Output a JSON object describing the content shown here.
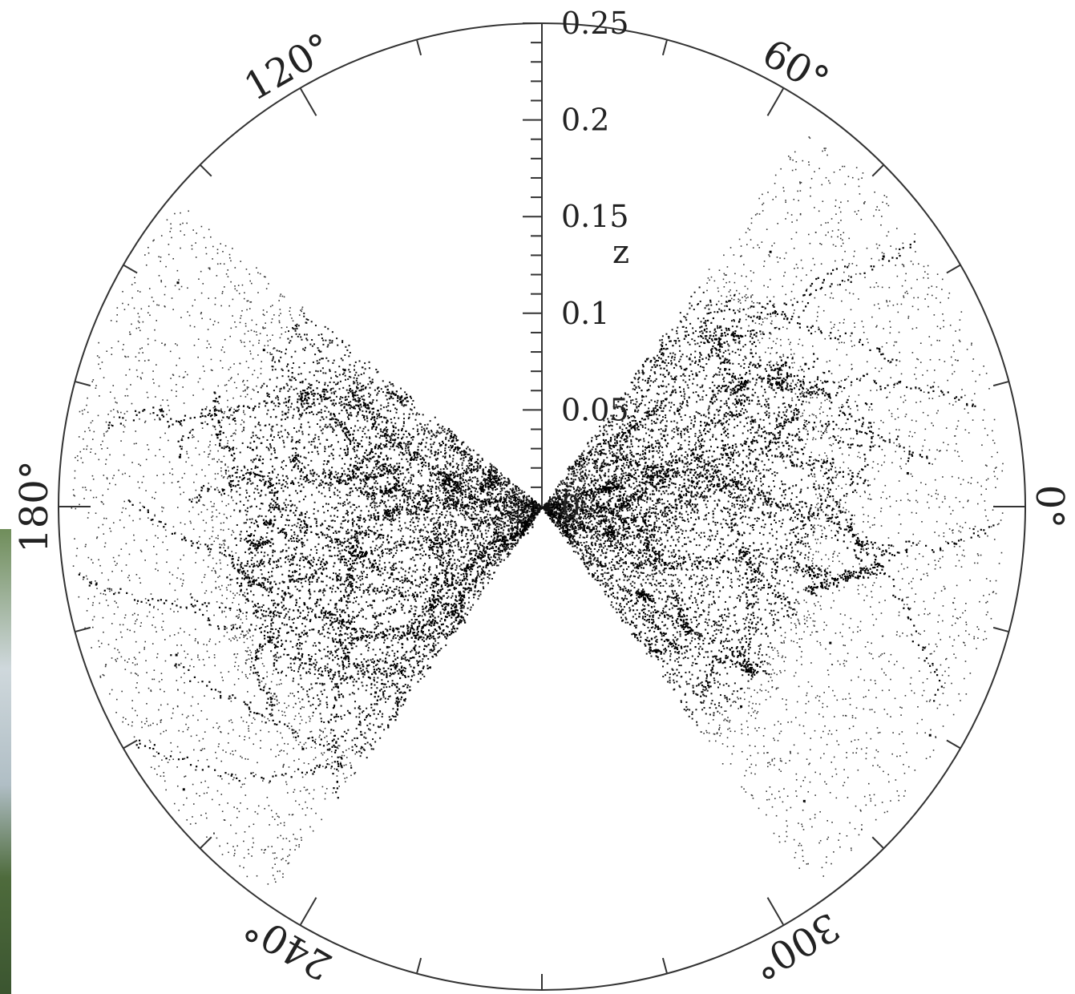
{
  "chart_data": {
    "type": "scatter",
    "coordinate_system": "polar",
    "title": "",
    "radial_axis": {
      "label": "z",
      "range": [
        0,
        0.25
      ],
      "ticks": [
        "0",
        "0.05",
        "0.1",
        "0.15",
        "0.2",
        "0.25"
      ],
      "tick_values": [
        0,
        0.05,
        0.1,
        0.15,
        0.2,
        0.25
      ],
      "minor_step": 0.01
    },
    "angular_axis": {
      "unit": "degrees",
      "direction": "counterclockwise",
      "zero_at": "right",
      "labels": [
        "0°",
        "60°",
        "120°",
        "180°",
        "240°",
        "300°"
      ],
      "label_values": [
        0,
        60,
        120,
        180,
        240,
        300
      ],
      "major_step": 60,
      "minor_step": 15
    },
    "series": [
      {
        "wedge_deg": [
          140,
          235
        ],
        "z_range": [
          0.0,
          0.245
        ],
        "dense_to_z": 0.16,
        "points": [
          [
            180.1,
            0.012
          ],
          [
            178.2,
            0.018
          ],
          [
            183.4,
            0.024
          ],
          [
            175.1,
            0.031
          ],
          [
            190.2,
            0.036
          ],
          [
            170.5,
            0.042
          ],
          [
            196.3,
            0.048
          ],
          [
            165.2,
            0.053
          ],
          [
            200.4,
            0.061
          ],
          [
            185.1,
            0.065
          ],
          [
            160.3,
            0.072
          ],
          [
            210.2,
            0.078
          ],
          [
            175.4,
            0.082
          ],
          [
            155.2,
            0.088
          ],
          [
            215.1,
            0.093
          ],
          [
            190.6,
            0.097
          ],
          [
            150.4,
            0.103
          ],
          [
            222.3,
            0.108
          ],
          [
            168.1,
            0.113
          ],
          [
            205.4,
            0.118
          ],
          [
            145.3,
            0.124
          ],
          [
            228.2,
            0.129
          ],
          [
            180.5,
            0.134
          ],
          [
            160.1,
            0.141
          ],
          [
            212.3,
            0.148
          ],
          [
            195.2,
            0.156
          ],
          [
            150.6,
            0.165
          ],
          [
            225.4,
            0.176
          ],
          [
            172.2,
            0.189
          ],
          [
            202.1,
            0.204
          ],
          [
            148.4,
            0.221
          ],
          [
            218.3,
            0.236
          ]
        ]
      },
      {
        "wedge_deg": [
          -55,
          55
        ],
        "z_range": [
          0.0,
          0.24
        ],
        "dense_to_z": 0.14,
        "points": [
          [
            0.5,
            0.014
          ],
          [
            -4.2,
            0.021
          ],
          [
            8.1,
            0.027
          ],
          [
            -12.3,
            0.034
          ],
          [
            15.2,
            0.041
          ],
          [
            -20.1,
            0.047
          ],
          [
            24.3,
            0.054
          ],
          [
            3.2,
            0.06
          ],
          [
            -28.4,
            0.067
          ],
          [
            30.1,
            0.073
          ],
          [
            -8.5,
            0.079
          ],
          [
            35.2,
            0.086
          ],
          [
            -35.1,
            0.092
          ],
          [
            12.4,
            0.098
          ],
          [
            40.3,
            0.105
          ],
          [
            -18.2,
            0.111
          ],
          [
            22.1,
            0.118
          ],
          [
            -40.4,
            0.124
          ],
          [
            45.2,
            0.131
          ],
          [
            -2.3,
            0.138
          ],
          [
            -45.1,
            0.146
          ],
          [
            28.4,
            0.155
          ],
          [
            -25.3,
            0.165
          ],
          [
            48.1,
            0.177
          ],
          [
            5.2,
            0.19
          ],
          [
            -48.3,
            0.204
          ],
          [
            36.2,
            0.219
          ],
          [
            -30.5,
            0.233
          ]
        ]
      }
    ]
  }
}
